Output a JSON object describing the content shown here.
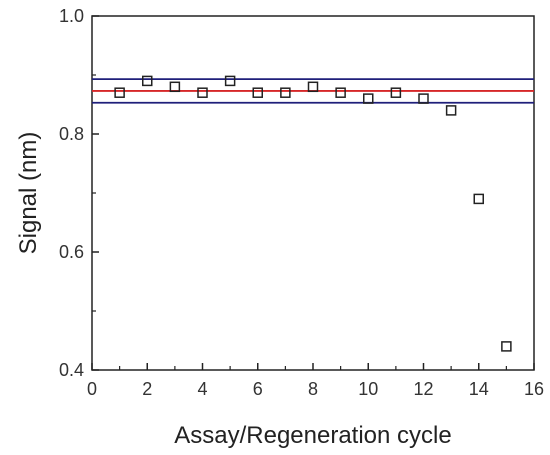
{
  "chart_data": {
    "type": "scatter",
    "title": "",
    "xlabel": "Assay/Regeneration cycle",
    "ylabel": "Signal (nm)",
    "xlim": [
      0,
      16
    ],
    "ylim": [
      0.4,
      1.0
    ],
    "x_ticks": [
      "0",
      "2",
      "4",
      "6",
      "8",
      "10",
      "12",
      "14",
      "16"
    ],
    "y_ticks": [
      "0.4",
      "0.6",
      "0.8",
      "1.0"
    ],
    "grid": false,
    "legend": "none",
    "series": [
      {
        "marker": "open-square",
        "color": "#222222",
        "points": [
          {
            "x": 1,
            "y": 0.87
          },
          {
            "x": 2,
            "y": 0.89
          },
          {
            "x": 3,
            "y": 0.88
          },
          {
            "x": 4,
            "y": 0.87
          },
          {
            "x": 5,
            "y": 0.89
          },
          {
            "x": 6,
            "y": 0.87
          },
          {
            "x": 7,
            "y": 0.87
          },
          {
            "x": 8,
            "y": 0.88
          },
          {
            "x": 9,
            "y": 0.87
          },
          {
            "x": 10,
            "y": 0.86
          },
          {
            "x": 11,
            "y": 0.87
          },
          {
            "x": 12,
            "y": 0.86
          },
          {
            "x": 13,
            "y": 0.84
          },
          {
            "x": 14,
            "y": 0.69
          },
          {
            "x": 15,
            "y": 0.44
          }
        ]
      }
    ],
    "reference_lines": [
      {
        "y": 0.873,
        "color": "#d62728"
      },
      {
        "y": 0.893,
        "color": "#1f1f7a"
      },
      {
        "y": 0.853,
        "color": "#1f1f7a"
      }
    ]
  }
}
